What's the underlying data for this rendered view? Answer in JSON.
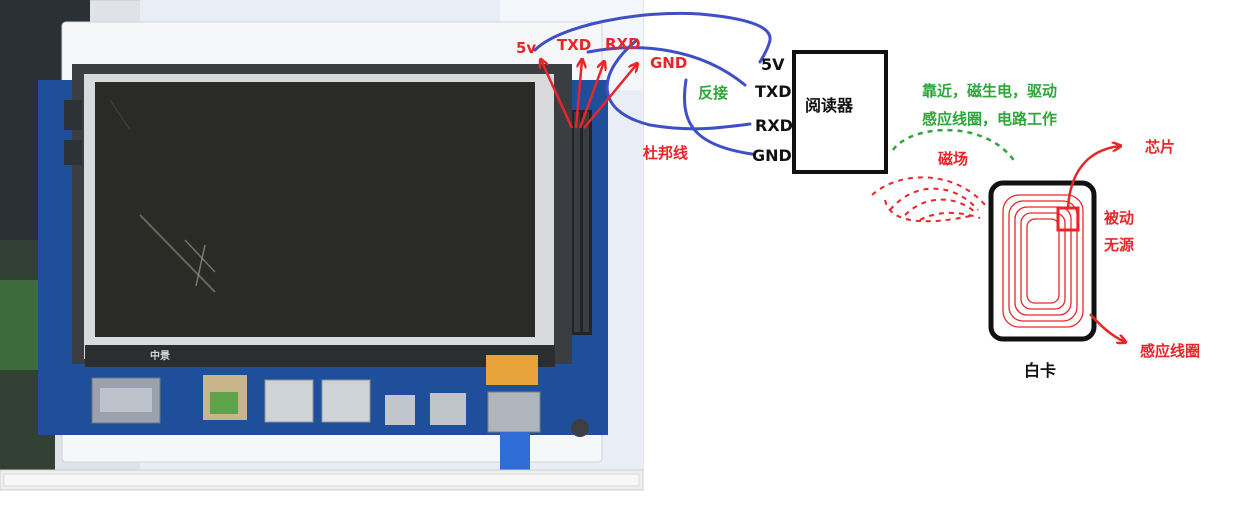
{
  "colors": {
    "red": "#e8262a",
    "green": "#2ea63a",
    "blue": "#3f4fc6",
    "black": "#111111",
    "board_blue": "#1f4f9a",
    "screen_dark": "#2a2a26"
  },
  "photo": {
    "board_silk_label": "中景"
  },
  "board_labels": {
    "pin_5v": "5v",
    "pin_txd": "TXD",
    "pin_rxd": "RXD",
    "gnd": "GND",
    "jumper_wire": "杜邦线"
  },
  "reverse_label": "反接",
  "reader": {
    "title": "阅读器",
    "pins": [
      "5V",
      "TXD",
      "RXD",
      "GND"
    ]
  },
  "notes": {
    "line1": "靠近，磁生电，驱动",
    "line2": "感应线圈，电路工作",
    "magnetic_field": "磁场",
    "chip": "芯片",
    "passive": "被动",
    "no_power": "无源",
    "coil": "感应线圈"
  },
  "card": {
    "label": "白卡"
  },
  "icons": {
    "board_photo": "dev-board-photo-icon",
    "arrow": "arrow-icon",
    "coil": "coil-icon"
  }
}
